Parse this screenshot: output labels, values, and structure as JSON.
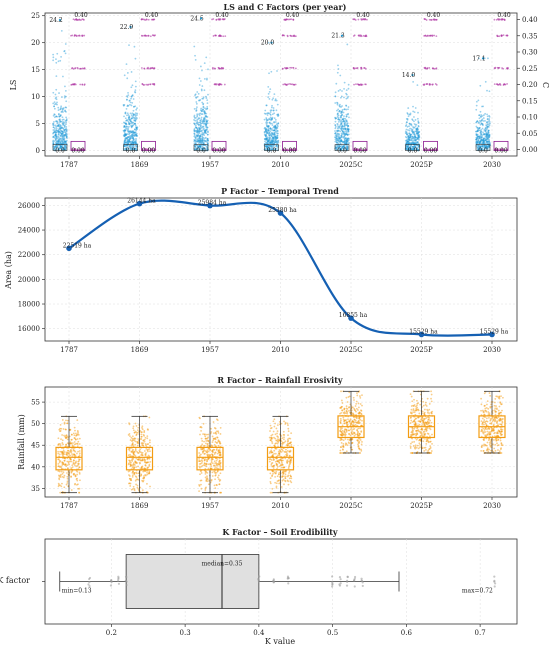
{
  "colors": {
    "ls_points": "#1f9ad6",
    "c_points": "#b03aa5",
    "c_box": "#8b1a8f",
    "p_line": "#1560b3",
    "r_box": "#f39c12",
    "r_points": "#f39c12",
    "k_box_fill": "#e0e0e0",
    "k_points": "#999999"
  },
  "chart_data": [
    {
      "type": "scatter",
      "title": "LS and C Factors (per year)",
      "ylabel": "LS",
      "ylabel_right": "C",
      "categories": [
        "1787",
        "1869",
        "1957",
        "2010",
        "2025C",
        "2025P",
        "2030"
      ],
      "ylim": [
        -1,
        25.5
      ],
      "yticks": [
        0,
        5,
        10,
        15,
        20,
        25
      ],
      "ylim_right": [
        -0.02,
        0.42
      ],
      "yticks_right": [
        "0.00",
        "0.05",
        "0.10",
        "0.15",
        "0.20",
        "0.25",
        "0.30",
        "0.35",
        "0.40"
      ],
      "ls_max": [
        24.2,
        22.9,
        24.5,
        20.0,
        21.3,
        14.0,
        17.1
      ],
      "ls_max_labels": [
        "24.2",
        "22.9",
        "24.5",
        "20.0",
        "21.3",
        "14.0",
        "17.1"
      ],
      "ls_min_labels": [
        "0.0",
        "0.0",
        "0.0",
        "0.0",
        "0.0",
        "0.0",
        "0.0"
      ],
      "c_max_labels": [
        "0.40",
        "0.40",
        "0.40",
        "0.40",
        "0.40",
        "0.40",
        "0.40"
      ],
      "c_min_labels": [
        "0.00",
        "0.00",
        "0.00",
        "0.00",
        "0.00",
        "0.00",
        "0.00"
      ],
      "c_levels": [
        0.0,
        0.2,
        0.25,
        0.35,
        0.4
      ],
      "grid": true
    },
    {
      "type": "line",
      "title": "P Factor – Temporal Trend",
      "ylabel": "Area (ha)",
      "categories": [
        "1787",
        "1869",
        "1957",
        "2010",
        "2025C",
        "2025P",
        "2030"
      ],
      "values": [
        22519,
        26144,
        25984,
        25380,
        16855,
        15529,
        15529
      ],
      "point_labels": [
        "22519 ha",
        "26144 ha",
        "25984 ha",
        "25380 ha",
        "16855 ha",
        "15529 ha",
        "15529 ha"
      ],
      "ylim": [
        15000,
        26600
      ],
      "yticks": [
        16000,
        18000,
        20000,
        22000,
        24000,
        26000
      ],
      "grid": true
    },
    {
      "type": "box",
      "title": "R Factor – Rainfall Erosivity",
      "ylabel": "Rainfall (mm)",
      "categories": [
        "1787",
        "1869",
        "1957",
        "2010",
        "2025C",
        "2025P",
        "2030"
      ],
      "boxes": [
        {
          "min": 34,
          "q1": 39.3,
          "median": 42.2,
          "q3": 44.5,
          "max": 51.7
        },
        {
          "min": 34,
          "q1": 39.3,
          "median": 42.2,
          "q3": 44.5,
          "max": 51.7
        },
        {
          "min": 34,
          "q1": 39.3,
          "median": 42.2,
          "q3": 44.5,
          "max": 51.7
        },
        {
          "min": 34,
          "q1": 39.3,
          "median": 42.2,
          "q3": 44.5,
          "max": 51.7
        },
        {
          "min": 43.2,
          "q1": 46.8,
          "median": 49.3,
          "q3": 51.8,
          "max": 57.5
        },
        {
          "min": 43.2,
          "q1": 46.8,
          "median": 49.3,
          "q3": 51.8,
          "max": 57.5
        },
        {
          "min": 43.2,
          "q1": 46.8,
          "median": 49.3,
          "q3": 51.8,
          "max": 57.5
        }
      ],
      "ylim": [
        33,
        58.5
      ],
      "yticks": [
        35,
        40,
        45,
        50,
        55
      ],
      "grid": true
    },
    {
      "type": "box",
      "title": "K Factor – Soil Erodibility",
      "xlabel": "K value",
      "ylabel_category": "K factor",
      "box": {
        "min": 0.13,
        "q1": 0.22,
        "median": 0.35,
        "q3": 0.4,
        "max": 0.59
      },
      "outlier_max": 0.72,
      "strip_values": [
        0.17,
        0.2,
        0.21,
        0.22,
        0.4,
        0.42,
        0.44,
        0.5,
        0.51,
        0.52,
        0.53,
        0.54,
        0.72
      ],
      "labels": {
        "min": "min=0.13",
        "median": "median=0.35",
        "max": "max=0.72"
      },
      "xlim": [
        0.11,
        0.75
      ],
      "xticks": [
        "0.2",
        "0.3",
        "0.4",
        "0.5",
        "0.6",
        "0.7"
      ],
      "grid": true
    }
  ]
}
